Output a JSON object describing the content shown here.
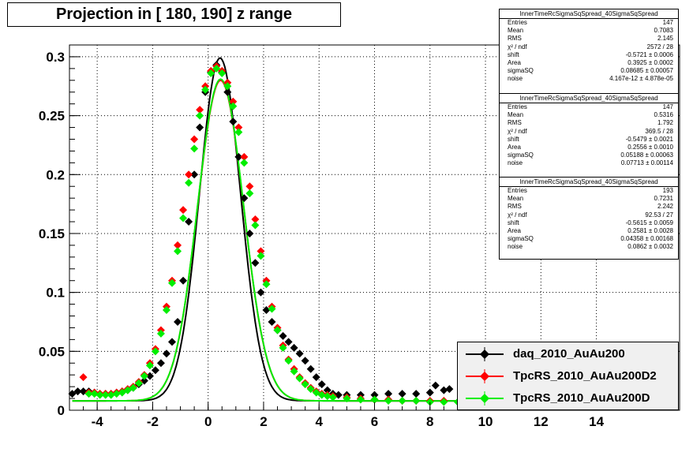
{
  "title": "Projection in [ 180, 190] z range",
  "chart_data": {
    "type": "scatter",
    "xlim": [
      -5,
      17
    ],
    "ylim": [
      0,
      0.31
    ],
    "xticks": [
      "-4",
      "-2",
      "0",
      "2",
      "4",
      "6",
      "8",
      "10",
      "12",
      "14"
    ],
    "yticks": [
      "0",
      "0.05",
      "0.1",
      "0.15",
      "0.2",
      "0.25",
      "0.3"
    ],
    "grid": true,
    "legend_position": "bottom-right",
    "series": [
      {
        "name": "daq_2010_AuAu200",
        "color": "#000000",
        "points": [
          [
            -4.9,
            0.014
          ],
          [
            -4.7,
            0.016
          ],
          [
            -4.5,
            0.016
          ],
          [
            -4.3,
            0.016
          ],
          [
            -4.1,
            0.015
          ],
          [
            -3.9,
            0.014
          ],
          [
            -3.7,
            0.014
          ],
          [
            -3.5,
            0.014
          ],
          [
            -3.3,
            0.015
          ],
          [
            -3.1,
            0.016
          ],
          [
            -2.9,
            0.017
          ],
          [
            -2.7,
            0.019
          ],
          [
            -2.5,
            0.022
          ],
          [
            -2.3,
            0.025
          ],
          [
            -2.1,
            0.029
          ],
          [
            -1.9,
            0.034
          ],
          [
            -1.7,
            0.04
          ],
          [
            -1.5,
            0.048
          ],
          [
            -1.3,
            0.058
          ],
          [
            -1.1,
            0.075
          ],
          [
            -0.9,
            0.11
          ],
          [
            -0.7,
            0.16
          ],
          [
            -0.5,
            0.2
          ],
          [
            -0.3,
            0.24
          ],
          [
            -0.1,
            0.27
          ],
          [
            0.1,
            0.287
          ],
          [
            0.3,
            0.293
          ],
          [
            0.5,
            0.287
          ],
          [
            0.7,
            0.27
          ],
          [
            0.9,
            0.245
          ],
          [
            1.1,
            0.215
          ],
          [
            1.3,
            0.18
          ],
          [
            1.5,
            0.15
          ],
          [
            1.7,
            0.125
          ],
          [
            1.9,
            0.1
          ],
          [
            2.1,
            0.085
          ],
          [
            2.3,
            0.075
          ],
          [
            2.5,
            0.068
          ],
          [
            2.7,
            0.063
          ],
          [
            2.9,
            0.058
          ],
          [
            3.1,
            0.053
          ],
          [
            3.3,
            0.048
          ],
          [
            3.5,
            0.042
          ],
          [
            3.7,
            0.035
          ],
          [
            3.9,
            0.028
          ],
          [
            4.1,
            0.022
          ],
          [
            4.3,
            0.017
          ],
          [
            4.5,
            0.014
          ],
          [
            4.7,
            0.013
          ],
          [
            5.0,
            0.013
          ],
          [
            5.5,
            0.013
          ],
          [
            6.0,
            0.013
          ],
          [
            6.5,
            0.014
          ],
          [
            7.0,
            0.014
          ],
          [
            7.5,
            0.014
          ],
          [
            8.0,
            0.015
          ],
          [
            8.2,
            0.021
          ],
          [
            8.5,
            0.017
          ],
          [
            8.7,
            0.018
          ]
        ]
      },
      {
        "name": "TpcRS_2010_AuAu200D2",
        "color": "#ff0000",
        "points": [
          [
            -4.5,
            0.028
          ],
          [
            -4.3,
            0.015
          ],
          [
            -4.1,
            0.015
          ],
          [
            -3.9,
            0.014
          ],
          [
            -3.7,
            0.014
          ],
          [
            -3.5,
            0.014
          ],
          [
            -3.3,
            0.015
          ],
          [
            -3.1,
            0.016
          ],
          [
            -2.9,
            0.018
          ],
          [
            -2.7,
            0.02
          ],
          [
            -2.5,
            0.024
          ],
          [
            -2.3,
            0.03
          ],
          [
            -2.1,
            0.04
          ],
          [
            -1.9,
            0.052
          ],
          [
            -1.7,
            0.068
          ],
          [
            -1.5,
            0.088
          ],
          [
            -1.3,
            0.11
          ],
          [
            -1.1,
            0.14
          ],
          [
            -0.9,
            0.17
          ],
          [
            -0.7,
            0.2
          ],
          [
            -0.5,
            0.23
          ],
          [
            -0.3,
            0.255
          ],
          [
            -0.1,
            0.275
          ],
          [
            0.1,
            0.288
          ],
          [
            0.3,
            0.292
          ],
          [
            0.5,
            0.288
          ],
          [
            0.7,
            0.278
          ],
          [
            0.9,
            0.262
          ],
          [
            1.1,
            0.24
          ],
          [
            1.3,
            0.215
          ],
          [
            1.5,
            0.19
          ],
          [
            1.7,
            0.162
          ],
          [
            1.9,
            0.135
          ],
          [
            2.1,
            0.11
          ],
          [
            2.3,
            0.088
          ],
          [
            2.5,
            0.07
          ],
          [
            2.7,
            0.055
          ],
          [
            2.9,
            0.043
          ],
          [
            3.1,
            0.035
          ],
          [
            3.3,
            0.028
          ],
          [
            3.5,
            0.023
          ],
          [
            3.7,
            0.019
          ],
          [
            3.9,
            0.016
          ],
          [
            4.1,
            0.014
          ],
          [
            4.3,
            0.013
          ],
          [
            4.5,
            0.012
          ],
          [
            5.0,
            0.011
          ],
          [
            5.5,
            0.01
          ],
          [
            6.0,
            0.009
          ],
          [
            6.5,
            0.009
          ],
          [
            7.0,
            0.008
          ],
          [
            7.5,
            0.008
          ],
          [
            8.0,
            0.008
          ],
          [
            8.5,
            0.008
          ]
        ]
      },
      {
        "name": "TpcRS_2010_AuAu200D",
        "color": "#00ee00",
        "points": [
          [
            -4.3,
            0.014
          ],
          [
            -4.1,
            0.014
          ],
          [
            -3.9,
            0.013
          ],
          [
            -3.7,
            0.013
          ],
          [
            -3.5,
            0.013
          ],
          [
            -3.3,
            0.014
          ],
          [
            -3.1,
            0.015
          ],
          [
            -2.9,
            0.017
          ],
          [
            -2.7,
            0.019
          ],
          [
            -2.5,
            0.023
          ],
          [
            -2.3,
            0.029
          ],
          [
            -2.1,
            0.038
          ],
          [
            -1.9,
            0.05
          ],
          [
            -1.7,
            0.065
          ],
          [
            -1.5,
            0.085
          ],
          [
            -1.3,
            0.108
          ],
          [
            -1.1,
            0.135
          ],
          [
            -0.9,
            0.163
          ],
          [
            -0.7,
            0.193
          ],
          [
            -0.5,
            0.222
          ],
          [
            -0.3,
            0.25
          ],
          [
            -0.1,
            0.272
          ],
          [
            0.1,
            0.286
          ],
          [
            0.3,
            0.29
          ],
          [
            0.5,
            0.286
          ],
          [
            0.7,
            0.275
          ],
          [
            0.9,
            0.258
          ],
          [
            1.1,
            0.236
          ],
          [
            1.3,
            0.21
          ],
          [
            1.5,
            0.184
          ],
          [
            1.7,
            0.157
          ],
          [
            1.9,
            0.131
          ],
          [
            2.1,
            0.107
          ],
          [
            2.3,
            0.086
          ],
          [
            2.5,
            0.068
          ],
          [
            2.7,
            0.053
          ],
          [
            2.9,
            0.042
          ],
          [
            3.1,
            0.033
          ],
          [
            3.3,
            0.027
          ],
          [
            3.5,
            0.022
          ],
          [
            3.7,
            0.018
          ],
          [
            3.9,
            0.015
          ],
          [
            4.1,
            0.013
          ],
          [
            4.3,
            0.012
          ],
          [
            4.5,
            0.011
          ],
          [
            5.0,
            0.01
          ],
          [
            5.5,
            0.009
          ],
          [
            6.0,
            0.009
          ],
          [
            6.5,
            0.008
          ],
          [
            7.0,
            0.008
          ],
          [
            7.5,
            0.008
          ],
          [
            8.0,
            0.007
          ],
          [
            8.5,
            0.007
          ],
          [
            9.0,
            0.007
          ]
        ]
      }
    ],
    "fits": [
      {
        "color": "#000000",
        "mean": 0.43,
        "peak": 0.291,
        "sigma": 0.74
      },
      {
        "color": "#ff0000",
        "mean": 0.45,
        "peak": 0.272,
        "sigma": 0.83
      },
      {
        "color": "#00ee00",
        "mean": 0.45,
        "peak": 0.273,
        "sigma": 0.83
      }
    ]
  },
  "stats_boxes": [
    {
      "header": "InnerTimeRcSigmaSqSpread_40SigmaSqSpread",
      "rows": [
        {
          "k": "Entries",
          "v": "147"
        },
        {
          "k": "Mean",
          "v": "0.7083"
        },
        {
          "k": "RMS",
          "v": "2.145"
        },
        {
          "k": "χ² / ndf",
          "v": "2572 / 28"
        },
        {
          "k": "shift",
          "v": "-0.5721 ± 0.0006"
        },
        {
          "k": "Area",
          "v": "0.3925 ± 0.0002"
        },
        {
          "k": "sigmaSQ",
          "v": "0.08685 ± 0.00057"
        },
        {
          "k": "noise",
          "v": "4.167e-12 ± 4.878e-05"
        }
      ]
    },
    {
      "header": "InnerTimeRcSigmaSqSpread_40SigmaSqSpread",
      "rows": [
        {
          "k": "Entries",
          "v": "147"
        },
        {
          "k": "Mean",
          "v": "0.5316"
        },
        {
          "k": "RMS",
          "v": "1.792"
        },
        {
          "k": "χ² / ndf",
          "v": "369.5 / 28"
        },
        {
          "k": "shift",
          "v": "-0.5479 ± 0.0021"
        },
        {
          "k": "Area",
          "v": "0.2556 ± 0.0010"
        },
        {
          "k": "sigmaSQ",
          "v": "0.05188 ± 0.00063"
        },
        {
          "k": "noise",
          "v": "0.07713 ± 0.00114"
        }
      ]
    },
    {
      "header": "InnerTimeRcSigmaSqSpread_40SigmaSqSpread",
      "rows": [
        {
          "k": "Entries",
          "v": "193"
        },
        {
          "k": "Mean",
          "v": "0.7231"
        },
        {
          "k": "RMS",
          "v": "2.242"
        },
        {
          "k": "χ² / ndf",
          "v": "92.53 / 27"
        },
        {
          "k": "shift",
          "v": "-0.5615 ± 0.0059"
        },
        {
          "k": "Area",
          "v": "0.2581 ± 0.0028"
        },
        {
          "k": "sigmaSQ",
          "v": "0.04358 ± 0.00168"
        },
        {
          "k": "noise",
          "v": "0.0862 ± 0.0032"
        }
      ]
    }
  ],
  "legend": [
    {
      "label": "daq_2010_AuAu200",
      "color": "#000000"
    },
    {
      "label": "TpcRS_2010_AuAu200D2",
      "color": "#ff0000"
    },
    {
      "label": "TpcRS_2010_AuAu200D",
      "color": "#00ee00"
    }
  ]
}
